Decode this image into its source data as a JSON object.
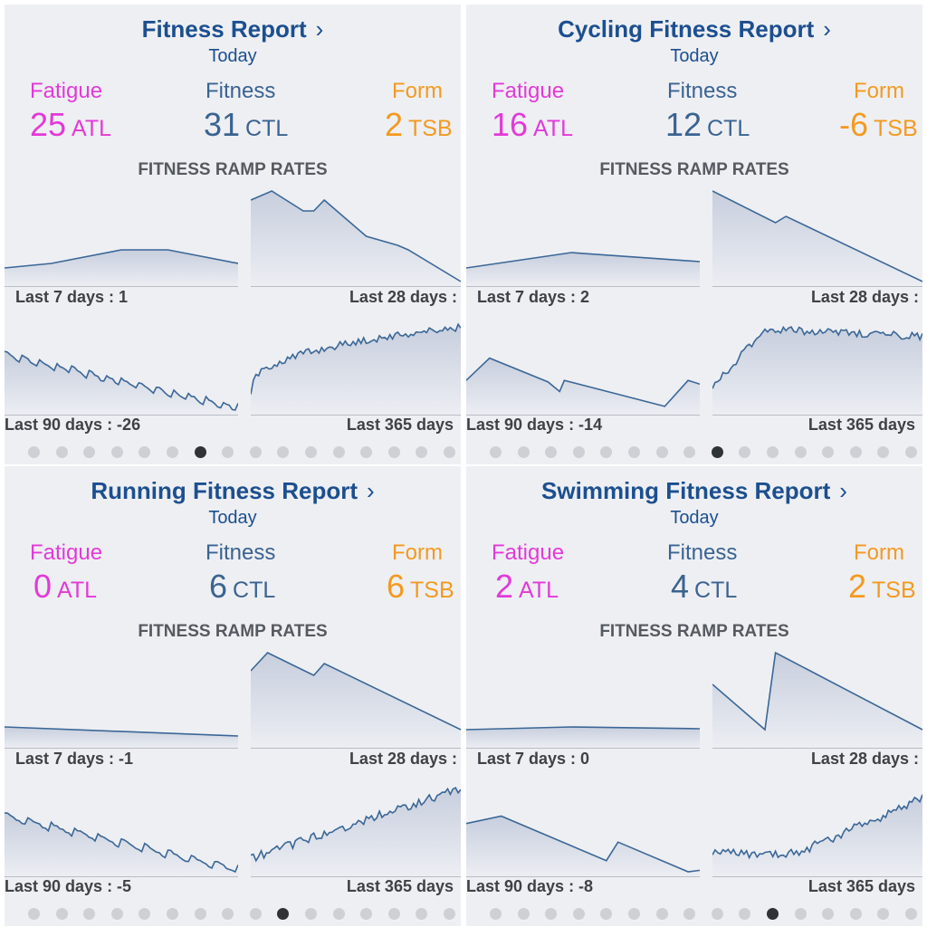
{
  "panels": [
    {
      "title": "Fitness Report",
      "chevron": "›",
      "subtitle": "Today",
      "fatigue": {
        "label": "Fatigue",
        "value": "25",
        "unit": "ATL"
      },
      "fitness": {
        "label": "Fitness",
        "value": "31",
        "unit": "CTL"
      },
      "form": {
        "label": "Form",
        "value": "2",
        "unit": "TSB"
      },
      "ramp_title": "FITNESS RAMP RATES",
      "captions": {
        "d7": "Last 7 days : 1",
        "d28": "Last 28 days :",
        "d90": "Last 90 days : -26",
        "d365": "Last 365 days"
      },
      "active_dot": 6
    },
    {
      "title": "Cycling Fitness Report",
      "chevron": "›",
      "subtitle": "Today",
      "fatigue": {
        "label": "Fatigue",
        "value": "16",
        "unit": "ATL"
      },
      "fitness": {
        "label": "Fitness",
        "value": "12",
        "unit": "CTL"
      },
      "form": {
        "label": "Form",
        "value": "-6",
        "unit": "TSB"
      },
      "ramp_title": "FITNESS RAMP RATES",
      "captions": {
        "d7": "Last 7 days : 2",
        "d28": "Last 28 days :",
        "d90": "Last 90 days : -14",
        "d365": "Last 365 days"
      },
      "active_dot": 8
    },
    {
      "title": "Running Fitness Report",
      "chevron": "›",
      "subtitle": "Today",
      "fatigue": {
        "label": "Fatigue",
        "value": "0",
        "unit": "ATL"
      },
      "fitness": {
        "label": "Fitness",
        "value": "6",
        "unit": "CTL"
      },
      "form": {
        "label": "Form",
        "value": "6",
        "unit": "TSB"
      },
      "ramp_title": "FITNESS RAMP RATES",
      "captions": {
        "d7": "Last 7 days : -1",
        "d28": "Last 28 days :",
        "d90": "Last 90 days : -5",
        "d365": "Last 365 days"
      },
      "active_dot": 9
    },
    {
      "title": "Swimming Fitness Report",
      "chevron": "›",
      "subtitle": "Today",
      "fatigue": {
        "label": "Fatigue",
        "value": "2",
        "unit": "ATL"
      },
      "fitness": {
        "label": "Fitness",
        "value": "4",
        "unit": "CTL"
      },
      "form": {
        "label": "Form",
        "value": "2",
        "unit": "TSB"
      },
      "ramp_title": "FITNESS RAMP RATES",
      "captions": {
        "d7": "Last 7 days : 0",
        "d28": "Last 28 days :",
        "d90": "Last 90 days : -8",
        "d365": "Last 365 days"
      },
      "active_dot": 10
    }
  ],
  "page_indicator_count": 16,
  "colors": {
    "title": "#1c4f8f",
    "fatigue": "#e23ad8",
    "fitness": "#3a6391",
    "form": "#f39a1f",
    "line": "#3b6797"
  }
}
